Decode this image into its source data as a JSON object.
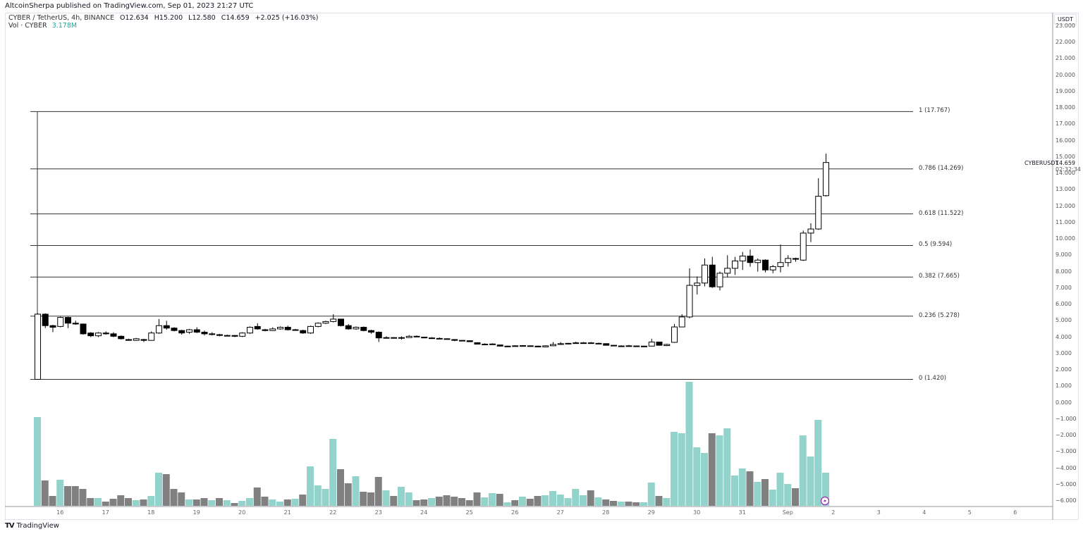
{
  "header": {
    "published": "AltcoinSherpa published on TradingView.com, Sep 01, 2023 21:27 UTC"
  },
  "legend": {
    "symbol": "CYBER / TetherUS, 4h, BINANCE",
    "open": "O12.634",
    "high": "H15.200",
    "low": "L12.580",
    "close": "C14.659",
    "change": "+2.025 (+16.03%)",
    "vol_label": "Vol · CYBER",
    "vol_value": "3.178M"
  },
  "currency_button": "USDT",
  "price_label": {
    "symbol": "CYBERUSDT",
    "price": "14.659",
    "countdown": "02:32:34"
  },
  "footer": {
    "logo": "TV",
    "brand": "TradingView"
  },
  "colors": {
    "up_body": "#ffffff",
    "down_body": "#000000",
    "wick": "#000000",
    "vol_up": "#92d3cc",
    "vol_down": "#808080",
    "fib_line": "#333333",
    "lightning": "#9c27b0"
  },
  "chart_data": {
    "type": "candlestick",
    "timeframe": "4h",
    "y_ticks": [
      "23.000",
      "22.000",
      "21.000",
      "20.000",
      "19.000",
      "18.000",
      "17.000",
      "16.000",
      "15.000",
      "14.000",
      "13.000",
      "12.000",
      "11.000",
      "10.000",
      "9.000",
      "8.000",
      "7.000",
      "6.000",
      "5.000",
      "4.000",
      "3.000",
      "2.000",
      "1.000",
      "0.000",
      "−1.000",
      "−2.000",
      "−3.000",
      "−4.000",
      "−5.000",
      "−6.000"
    ],
    "y_range": [
      -6,
      23
    ],
    "x_ticks": [
      "16",
      "17",
      "18",
      "19",
      "20",
      "21",
      "22",
      "23",
      "24",
      "25",
      "26",
      "27",
      "28",
      "29",
      "30",
      "31",
      "Sep",
      "2",
      "3",
      "4",
      "5",
      "6"
    ],
    "first_day_tick_candle_index": 3,
    "candles_per_day": 6,
    "fib_levels": [
      {
        "ratio": 1,
        "price": 17.767,
        "label": "1 (17.767)"
      },
      {
        "ratio": 0.786,
        "price": 14.269,
        "label": "0.786 (14.269)"
      },
      {
        "ratio": 0.618,
        "price": 11.522,
        "label": "0.618 (11.522)"
      },
      {
        "ratio": 0.5,
        "price": 9.594,
        "label": "0.5 (9.594)"
      },
      {
        "ratio": 0.382,
        "price": 7.665,
        "label": "0.382 (7.665)"
      },
      {
        "ratio": 0.236,
        "price": 5.278,
        "label": "0.236 (5.278)"
      },
      {
        "ratio": 0,
        "price": 1.42,
        "label": "0 (1.420)"
      }
    ],
    "ohlc": [
      [
        1.42,
        5.45,
        1.42,
        5.4
      ],
      [
        5.4,
        5.45,
        4.55,
        4.7
      ],
      [
        4.7,
        4.75,
        4.3,
        4.6
      ],
      [
        4.65,
        5.25,
        4.6,
        5.2
      ],
      [
        5.2,
        5.25,
        4.55,
        4.85
      ],
      [
        4.85,
        5.0,
        4.75,
        4.8
      ],
      [
        4.8,
        4.82,
        4.15,
        4.2
      ],
      [
        4.25,
        4.3,
        4.0,
        4.08
      ],
      [
        4.08,
        4.3,
        4.0,
        4.25
      ],
      [
        4.25,
        4.35,
        4.15,
        4.2
      ],
      [
        4.2,
        4.3,
        4.0,
        4.05
      ],
      [
        4.05,
        4.1,
        3.85,
        3.9
      ],
      [
        3.85,
        3.9,
        3.78,
        3.8
      ],
      [
        3.8,
        3.95,
        3.78,
        3.9
      ],
      [
        3.85,
        3.9,
        3.7,
        3.8
      ],
      [
        3.8,
        4.35,
        3.78,
        4.25
      ],
      [
        4.25,
        5.1,
        4.2,
        4.7
      ],
      [
        4.7,
        5.0,
        4.45,
        4.55
      ],
      [
        4.55,
        4.6,
        4.35,
        4.4
      ],
      [
        4.4,
        4.45,
        4.15,
        4.25
      ],
      [
        4.3,
        4.5,
        4.2,
        4.45
      ],
      [
        4.45,
        4.6,
        4.25,
        4.3
      ],
      [
        4.3,
        4.4,
        4.1,
        4.2
      ],
      [
        4.2,
        4.3,
        4.1,
        4.2
      ],
      [
        4.15,
        4.2,
        4.05,
        4.1
      ],
      [
        4.1,
        4.15,
        4.05,
        4.1
      ],
      [
        4.1,
        4.12,
        4.0,
        4.05
      ],
      [
        4.05,
        4.3,
        4.0,
        4.25
      ],
      [
        4.25,
        4.65,
        4.2,
        4.6
      ],
      [
        4.65,
        4.85,
        4.45,
        4.5
      ],
      [
        4.45,
        4.5,
        4.35,
        4.4
      ],
      [
        4.4,
        4.6,
        4.38,
        4.5
      ],
      [
        4.5,
        4.65,
        4.45,
        4.6
      ],
      [
        4.6,
        4.7,
        4.4,
        4.45
      ],
      [
        4.45,
        4.5,
        4.4,
        4.45
      ],
      [
        4.4,
        4.45,
        4.2,
        4.25
      ],
      [
        4.25,
        4.7,
        4.2,
        4.65
      ],
      [
        4.65,
        4.9,
        4.6,
        4.85
      ],
      [
        4.85,
        5.0,
        4.8,
        4.95
      ],
      [
        4.95,
        5.4,
        4.9,
        5.1
      ],
      [
        5.1,
        5.12,
        4.65,
        4.7
      ],
      [
        4.7,
        4.8,
        4.45,
        4.5
      ],
      [
        4.5,
        4.65,
        4.45,
        4.6
      ],
      [
        4.6,
        4.65,
        4.35,
        4.4
      ],
      [
        4.4,
        4.45,
        4.2,
        4.3
      ],
      [
        4.3,
        4.35,
        3.7,
        3.95
      ],
      [
        3.97,
        4.05,
        3.95,
        3.97
      ],
      [
        3.97,
        4.0,
        3.93,
        3.95
      ],
      [
        3.95,
        4.05,
        3.85,
        3.97
      ],
      [
        3.97,
        4.12,
        3.95,
        4.05
      ],
      [
        4.05,
        4.1,
        4.0,
        4.05
      ],
      [
        4.0,
        4.02,
        3.93,
        3.95
      ],
      [
        3.95,
        4.0,
        3.9,
        3.92
      ],
      [
        3.92,
        3.98,
        3.88,
        3.9
      ],
      [
        3.9,
        3.92,
        3.85,
        3.87
      ],
      [
        3.85,
        3.88,
        3.75,
        3.8
      ],
      [
        3.8,
        3.82,
        3.75,
        3.78
      ],
      [
        3.78,
        3.8,
        3.7,
        3.72
      ],
      [
        3.66,
        3.68,
        3.55,
        3.57
      ],
      [
        3.57,
        3.62,
        3.54,
        3.55
      ],
      [
        3.54,
        3.62,
        3.52,
        3.58
      ],
      [
        3.52,
        3.54,
        3.43,
        3.45
      ],
      [
        3.45,
        3.48,
        3.42,
        3.45
      ],
      [
        3.45,
        3.5,
        3.42,
        3.47
      ],
      [
        3.47,
        3.5,
        3.44,
        3.48
      ],
      [
        3.47,
        3.49,
        3.44,
        3.46
      ],
      [
        3.45,
        3.47,
        3.38,
        3.4
      ],
      [
        3.4,
        3.5,
        3.38,
        3.47
      ],
      [
        3.47,
        3.7,
        3.45,
        3.55
      ],
      [
        3.55,
        3.7,
        3.52,
        3.6
      ],
      [
        3.58,
        3.64,
        3.55,
        3.62
      ],
      [
        3.62,
        3.72,
        3.6,
        3.65
      ],
      [
        3.64,
        3.7,
        3.6,
        3.65
      ],
      [
        3.65,
        3.7,
        3.6,
        3.62
      ],
      [
        3.62,
        3.66,
        3.58,
        3.62
      ],
      [
        3.6,
        3.62,
        3.48,
        3.5
      ],
      [
        3.5,
        3.52,
        3.44,
        3.46
      ],
      [
        3.45,
        3.5,
        3.43,
        3.46
      ],
      [
        3.46,
        3.52,
        3.44,
        3.47
      ],
      [
        3.46,
        3.48,
        3.43,
        3.45
      ],
      [
        3.45,
        3.47,
        3.42,
        3.45
      ],
      [
        3.45,
        3.9,
        3.43,
        3.7
      ],
      [
        3.7,
        3.72,
        3.48,
        3.5
      ],
      [
        3.48,
        3.6,
        3.45,
        3.55
      ],
      [
        3.68,
        4.8,
        3.65,
        4.62
      ],
      [
        4.62,
        5.4,
        4.6,
        5.23
      ],
      [
        5.23,
        8.2,
        5.15,
        7.16
      ],
      [
        7.15,
        7.7,
        6.6,
        7.3
      ],
      [
        7.3,
        8.8,
        7.1,
        8.4
      ],
      [
        8.4,
        8.9,
        7.0,
        7.07
      ],
      [
        7.07,
        8.0,
        6.85,
        7.9
      ],
      [
        7.9,
        9.0,
        7.65,
        8.2
      ],
      [
        8.2,
        8.9,
        7.8,
        8.65
      ],
      [
        8.65,
        9.2,
        8.1,
        8.95
      ],
      [
        8.95,
        9.35,
        8.3,
        8.55
      ],
      [
        8.55,
        8.8,
        8.0,
        8.7
      ],
      [
        8.7,
        8.75,
        7.95,
        8.1
      ],
      [
        8.1,
        8.4,
        7.9,
        8.3
      ],
      [
        8.3,
        9.65,
        7.95,
        8.55
      ],
      [
        8.55,
        9.0,
        8.3,
        8.8
      ],
      [
        8.8,
        8.85,
        8.6,
        8.75
      ],
      [
        8.7,
        10.5,
        8.65,
        10.35
      ],
      [
        10.35,
        10.95,
        9.8,
        10.6
      ],
      [
        10.6,
        13.7,
        10.55,
        12.6
      ],
      [
        12.634,
        15.2,
        12.58,
        14.659
      ]
    ],
    "volume_relative": [
      126,
      36,
      14,
      37,
      28,
      28,
      24,
      11,
      11,
      6,
      10,
      15,
      11,
      8,
      9,
      14,
      47,
      45,
      24,
      19,
      9,
      9,
      11,
      8,
      11,
      8,
      4,
      7,
      11,
      26,
      13,
      9,
      6,
      9,
      10,
      16,
      56,
      29,
      24,
      95,
      52,
      32,
      42,
      20,
      19,
      41,
      22,
      14,
      27,
      19,
      8,
      9,
      11,
      13,
      15,
      13,
      11,
      8,
      19,
      12,
      18,
      17,
      5,
      8,
      13,
      10,
      14,
      15,
      21,
      16,
      11,
      24,
      15,
      22,
      12,
      9,
      7,
      6,
      6,
      5,
      5,
      33,
      14,
      11,
      105,
      103,
      176,
      83,
      75,
      103,
      100,
      110,
      43,
      53,
      49,
      34,
      38,
      23,
      47,
      31,
      25,
      100,
      70,
      122,
      47
    ],
    "volume_up": [
      1,
      0,
      0,
      1,
      0,
      0,
      0,
      0,
      1,
      0,
      0,
      0,
      0,
      1,
      0,
      1,
      1,
      0,
      0,
      0,
      1,
      0,
      0,
      1,
      0,
      1,
      0,
      1,
      1,
      0,
      0,
      1,
      1,
      0,
      1,
      0,
      1,
      1,
      1,
      1,
      0,
      0,
      1,
      0,
      0,
      0,
      1,
      0,
      1,
      1,
      0,
      0,
      1,
      0,
      0,
      0,
      0,
      0,
      0,
      1,
      1,
      0,
      1,
      0,
      1,
      0,
      0,
      1,
      1,
      1,
      1,
      1,
      1,
      0,
      1,
      0,
      0,
      1,
      0,
      0,
      1,
      1,
      0,
      1,
      1,
      1,
      1,
      1,
      1,
      0,
      1,
      1,
      1,
      1,
      0,
      1,
      0,
      1,
      1,
      1,
      0,
      1,
      1,
      1,
      1
    ]
  }
}
